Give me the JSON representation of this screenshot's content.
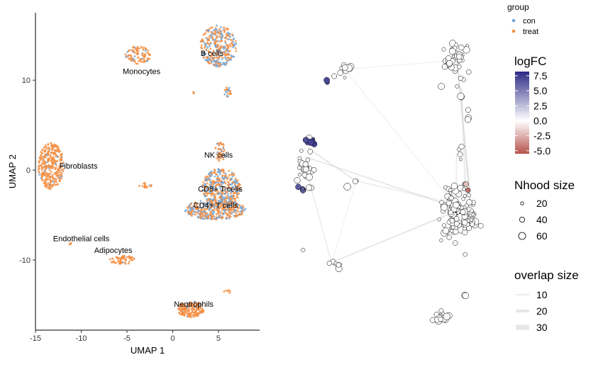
{
  "chart_data": [
    {
      "type": "scatter",
      "title": "",
      "xlabel": "UMAP 1",
      "ylabel": "UMAP 2",
      "xlim": [
        -15,
        9.5
      ],
      "ylim": [
        -17.8,
        17.5
      ],
      "xticks": [
        -15,
        -10,
        -5,
        0,
        5
      ],
      "yticks": [
        -10,
        0,
        10
      ],
      "series": [
        {
          "name": "con",
          "color": "#6fa3d8"
        },
        {
          "name": "treat",
          "color": "#f68f43"
        }
      ],
      "legend_title": "group",
      "legend_position": "top-right",
      "clusters": [
        {
          "label": "B cells",
          "center": [
            5.0,
            13.8
          ],
          "rx": 2.0,
          "ry": 2.3,
          "n": 320,
          "con_share": 0.45,
          "label_at": [
            4.3,
            13.0
          ]
        },
        {
          "label": "Monocytes",
          "center": [
            -3.8,
            12.8
          ],
          "rx": 1.4,
          "ry": 1.0,
          "n": 90,
          "con_share": 0.1,
          "label_at": [
            -3.4,
            11.0
          ]
        },
        {
          "label": "Fibroblasts",
          "center": [
            -13.3,
            0.5
          ],
          "rx": 1.4,
          "ry": 2.6,
          "n": 330,
          "con_share": 0.08,
          "label_at": [
            -10.3,
            0.5
          ]
        },
        {
          "label": "NK cells",
          "center": [
            5.2,
            2.0
          ],
          "rx": 0.6,
          "ry": 1.2,
          "n": 40,
          "con_share": 0.3,
          "label_at": [
            5.0,
            1.7
          ]
        },
        {
          "label": "CD8+ T cells",
          "center": [
            5.3,
            -2.0
          ],
          "rx": 2.1,
          "ry": 2.2,
          "n": 380,
          "con_share": 0.4,
          "label_at": [
            5.2,
            -2.1
          ]
        },
        {
          "label": "CD4+ T cells",
          "center": [
            4.6,
            -4.4
          ],
          "rx": 3.4,
          "ry": 1.1,
          "n": 380,
          "con_share": 0.4,
          "label_at": [
            4.7,
            -3.9
          ]
        },
        {
          "label": "Endothelial cells",
          "center": [
            -11.2,
            -8.2
          ],
          "rx": 0.15,
          "ry": 0.15,
          "n": 5,
          "con_share": 0.0,
          "label_at": [
            -10.0,
            -7.6
          ]
        },
        {
          "label": "Adipocytes",
          "center": [
            -5.5,
            -10.0
          ],
          "rx": 1.4,
          "ry": 0.5,
          "n": 60,
          "con_share": 0.05,
          "label_at": [
            -6.5,
            -8.9
          ]
        },
        {
          "label": "Neutrophils",
          "center": [
            2.0,
            -15.5
          ],
          "rx": 1.5,
          "ry": 0.9,
          "n": 180,
          "con_share": 0.05,
          "label_at": [
            2.3,
            -14.9
          ]
        },
        {
          "label": "",
          "center": [
            6.0,
            8.7
          ],
          "rx": 0.4,
          "ry": 0.6,
          "n": 20,
          "con_share": 0.4
        },
        {
          "label": "",
          "center": [
            2.3,
            8.6
          ],
          "rx": 0.1,
          "ry": 0.1,
          "n": 3,
          "con_share": 0.0
        },
        {
          "label": "",
          "center": [
            -3.0,
            -1.7
          ],
          "rx": 0.7,
          "ry": 0.3,
          "n": 18,
          "con_share": 0.1
        },
        {
          "label": "",
          "center": [
            6.0,
            -13.5
          ],
          "rx": 0.4,
          "ry": 0.2,
          "n": 6,
          "con_share": 0.0
        }
      ]
    },
    {
      "type": "scatter",
      "title": "",
      "legend_position": "right",
      "logfc_legend": {
        "title": "logFC",
        "range": [
          -5.5,
          8.2
        ],
        "ticks": [
          "7.5",
          "5.0",
          "2.5",
          "0.0",
          "-2.5",
          "-5.0"
        ],
        "tick_values": [
          7.5,
          5.0,
          2.5,
          0.0,
          -2.5,
          -5.0
        ],
        "colors": {
          "high": "#2b2a86",
          "mid": "#ffffff",
          "low": "#b5534c"
        }
      },
      "size_legend": {
        "title": "Nhood size",
        "labels": [
          "20",
          "40",
          "60"
        ]
      },
      "overlap_legend": {
        "title": "overlap size",
        "labels": [
          "10",
          "20",
          "30"
        ]
      },
      "x_range": [
        0,
        100
      ],
      "y_range": [
        0,
        100
      ],
      "nhood_clusters": [
        {
          "center": [
            82,
            87
          ],
          "spread": [
            6,
            7
          ],
          "n": 40,
          "logFC": 0.0
        },
        {
          "center": [
            31,
            84
          ],
          "spread": [
            3,
            3
          ],
          "n": 10,
          "logFC": 0.0
        },
        {
          "center": [
            23,
            80
          ],
          "spread": [
            0.6,
            0.6
          ],
          "n": 2,
          "logFC": 7.0
        },
        {
          "center": [
            84,
            75
          ],
          "spread": [
            0.4,
            0.4
          ],
          "n": 2,
          "logFC": 0.0
        },
        {
          "center": [
            87,
            68
          ],
          "spread": [
            0.8,
            2
          ],
          "n": 3,
          "logFC": 0.0
        },
        {
          "center": [
            13,
            52
          ],
          "spread": [
            4,
            7
          ],
          "n": 25,
          "logFC": 0.0
        },
        {
          "center": [
            16,
            60
          ],
          "spread": [
            3,
            1.5
          ],
          "n": 8,
          "logFC": 6.8
        },
        {
          "center": [
            12,
            44
          ],
          "spread": [
            2,
            2
          ],
          "n": 5,
          "logFC": 6.0
        },
        {
          "center": [
            36,
            47
          ],
          "spread": [
            0.5,
            0.5
          ],
          "n": 2,
          "logFC": 0.0
        },
        {
          "center": [
            32,
            45
          ],
          "spread": [
            0.3,
            0.3
          ],
          "n": 1,
          "logFC": 0.0
        },
        {
          "center": [
            83,
            56
          ],
          "spread": [
            1,
            3
          ],
          "n": 4,
          "logFC": 0.0
        },
        {
          "center": [
            82,
            37
          ],
          "spread": [
            8,
            8
          ],
          "n": 140,
          "logFC": 0.0
        },
        {
          "center": [
            87,
            44
          ],
          "spread": [
            0.5,
            0.5
          ],
          "n": 1,
          "logFC": -4.6
        },
        {
          "center": [
            86,
            46
          ],
          "spread": [
            0.6,
            0.6
          ],
          "n": 2,
          "logFC": -2.0
        },
        {
          "center": [
            27,
            19
          ],
          "spread": [
            3,
            1.5
          ],
          "n": 9,
          "logFC": 0.0
        },
        {
          "center": [
            12,
            24
          ],
          "spread": [
            0.2,
            0.2
          ],
          "n": 1,
          "logFC": 0.0
        },
        {
          "center": [
            75,
            2
          ],
          "spread": [
            3,
            2
          ],
          "n": 18,
          "logFC": 0.0
        },
        {
          "center": [
            86,
            9
          ],
          "spread": [
            0.4,
            0.4
          ],
          "n": 2,
          "logFC": 0.0
        }
      ],
      "edges": [
        {
          "from": [
            31,
            84
          ],
          "to": [
            82,
            87
          ],
          "weight": 3
        },
        {
          "from": [
            31,
            84
          ],
          "to": [
            80,
            40
          ],
          "weight": 2
        },
        {
          "from": [
            82,
            87
          ],
          "to": [
            88,
            40
          ],
          "weight": 25
        },
        {
          "from": [
            84,
            78
          ],
          "to": [
            86,
            42
          ],
          "weight": 10
        },
        {
          "from": [
            14,
            58
          ],
          "to": [
            36,
            47
          ],
          "weight": 12
        },
        {
          "from": [
            13,
            55
          ],
          "to": [
            82,
            38
          ],
          "weight": 8
        },
        {
          "from": [
            13,
            52
          ],
          "to": [
            25,
            20
          ],
          "weight": 6
        },
        {
          "from": [
            36,
            47
          ],
          "to": [
            25,
            20
          ],
          "weight": 4
        },
        {
          "from": [
            25,
            20
          ],
          "to": [
            78,
            36
          ],
          "weight": 10
        },
        {
          "from": [
            36,
            47
          ],
          "to": [
            78,
            40
          ],
          "weight": 6
        },
        {
          "from": [
            82,
            56
          ],
          "to": [
            82,
            40
          ],
          "weight": 5
        }
      ]
    }
  ],
  "group_legend": {
    "title": "group",
    "items": [
      {
        "label": "con",
        "color": "#6fa3d8"
      },
      {
        "label": "treat",
        "color": "#f68f43"
      }
    ]
  }
}
